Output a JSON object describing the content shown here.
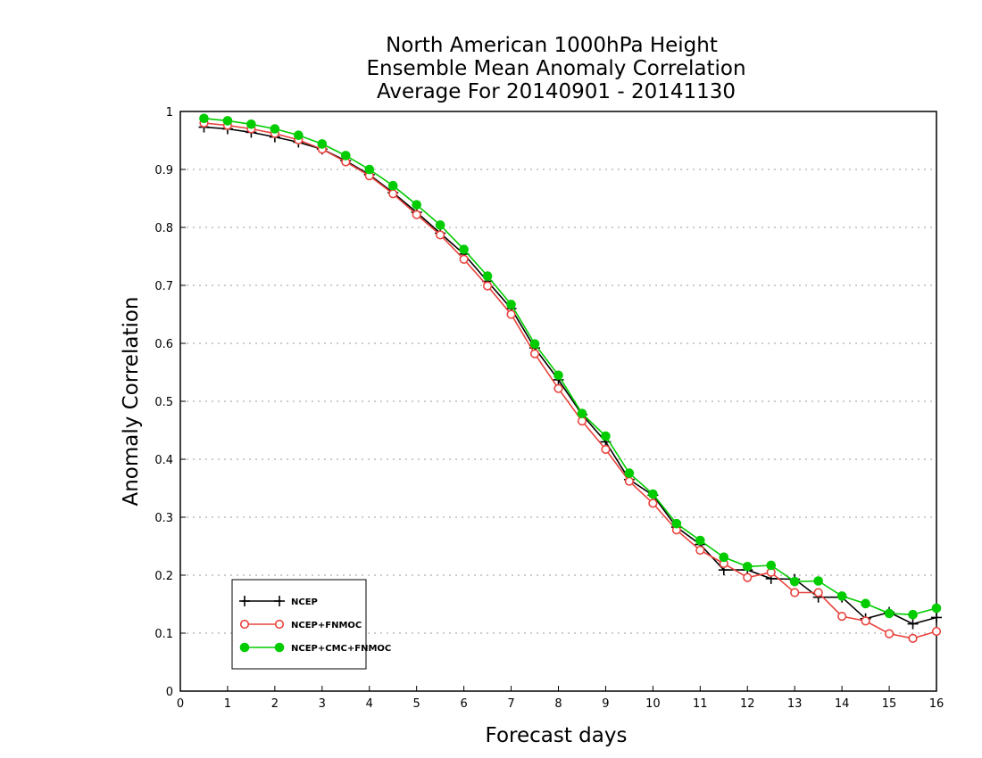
{
  "chart_data": {
    "type": "line",
    "title": [
      "North American 1000hPa Height",
      "Ensemble Mean Anomaly Correlation",
      "Average For 20140901 - 20141130"
    ],
    "xlabel": "Forecast days",
    "ylabel": "Anomaly Correlation",
    "xlim": [
      0,
      16
    ],
    "ylim": [
      0,
      1
    ],
    "xticks": [
      "0",
      "1",
      "2",
      "3",
      "4",
      "5",
      "6",
      "7",
      "8",
      "9",
      "10",
      "11",
      "12",
      "13",
      "14",
      "15",
      "16"
    ],
    "yticks": [
      "0",
      "0.1",
      "0.2",
      "0.3",
      "0.4",
      "0.5",
      "0.6",
      "0.7",
      "0.8",
      "0.9",
      "1"
    ],
    "grid": "horizontal dotted",
    "legend_position": "bottom-left",
    "x": [
      0.5,
      1,
      1.5,
      2,
      2.5,
      3,
      3.5,
      4,
      4.5,
      5,
      5.5,
      6,
      6.5,
      7,
      7.5,
      8,
      8.5,
      9,
      9.5,
      10,
      10.5,
      11,
      11.5,
      12,
      12.5,
      13,
      13.5,
      14,
      14.5,
      15,
      15.5,
      16
    ],
    "series": [
      {
        "name": "NCEP",
        "color": "#000000",
        "marker": "plus",
        "values": [
          0.973,
          0.97,
          0.964,
          0.956,
          0.947,
          0.935,
          0.915,
          0.891,
          0.86,
          0.826,
          0.79,
          0.754,
          0.707,
          0.66,
          0.592,
          0.537,
          0.477,
          0.43,
          0.365,
          0.338,
          0.283,
          0.253,
          0.209,
          0.209,
          0.194,
          0.193,
          0.162,
          0.162,
          0.125,
          0.136,
          0.116,
          0.127
        ]
      },
      {
        "name": "NCEP+FNMOC",
        "color": "#e8443e",
        "marker": "open-circle",
        "values": [
          0.98,
          0.976,
          0.97,
          0.962,
          0.951,
          0.935,
          0.913,
          0.889,
          0.858,
          0.822,
          0.787,
          0.745,
          0.699,
          0.65,
          0.582,
          0.522,
          0.466,
          0.417,
          0.362,
          0.324,
          0.278,
          0.243,
          0.22,
          0.196,
          0.205,
          0.17,
          0.17,
          0.129,
          0.121,
          0.099,
          0.091,
          0.103
        ]
      },
      {
        "name": "NCEP+CMC+FNMOC",
        "color": "#00cc00",
        "marker": "filled-circle",
        "values": [
          0.988,
          0.984,
          0.978,
          0.97,
          0.959,
          0.944,
          0.924,
          0.9,
          0.872,
          0.839,
          0.804,
          0.762,
          0.716,
          0.667,
          0.599,
          0.545,
          0.479,
          0.44,
          0.376,
          0.34,
          0.289,
          0.26,
          0.231,
          0.215,
          0.217,
          0.189,
          0.19,
          0.164,
          0.151,
          0.134,
          0.132,
          0.143
        ]
      }
    ]
  }
}
